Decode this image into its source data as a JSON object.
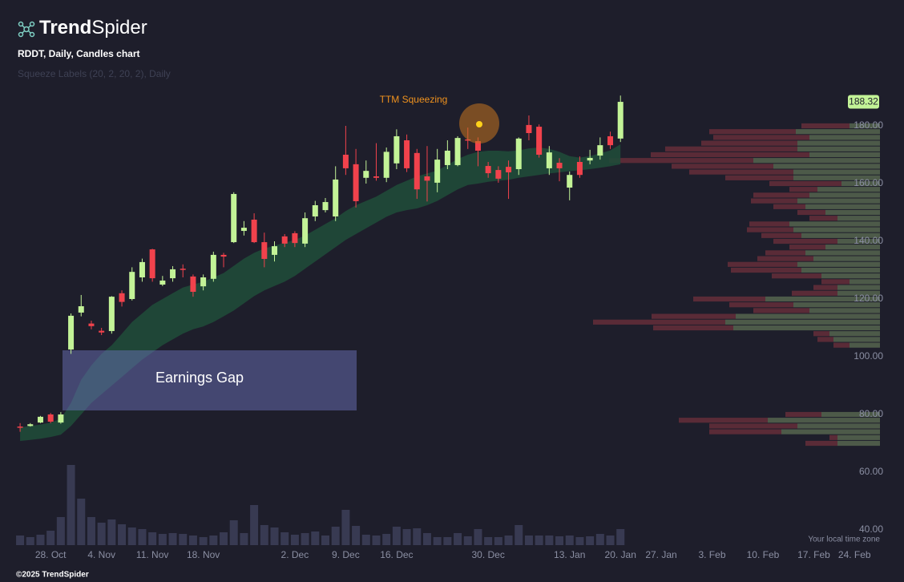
{
  "header": {
    "brand": [
      "Trend",
      "Spider"
    ]
  },
  "footer": "©2025 TrendSpider",
  "chart_data": {
    "type": "candlestick",
    "title": "RDDT, Daily, Candles chart",
    "subtitle": "Squeeze Labels (20, 2, 20, 2), Daily",
    "annotations": [
      "TTM Squeezing",
      "Earnings Gap"
    ],
    "timezone_note": "Your local time zone",
    "up_color": "#c3f397",
    "down_color": "#f1424c",
    "band_color": "#1f4a39",
    "volume_color": "#383a52",
    "sell_color": "#5a2b37",
    "buy_color": "#4d5a49",
    "grid": false,
    "xlim": [
      -3.4,
      81.5
    ],
    "ylim": [
      35,
      195
    ],
    "xticks": [
      {
        "value": 0,
        "label": "28. Oct"
      },
      {
        "value": 5,
        "label": "4. Nov"
      },
      {
        "value": 10,
        "label": "11. Nov"
      },
      {
        "value": 15,
        "label": "18. Nov"
      },
      {
        "value": 24,
        "label": "2. Dec"
      },
      {
        "value": 29,
        "label": "9. Dec"
      },
      {
        "value": 34,
        "label": "16. Dec"
      },
      {
        "value": 43,
        "label": "30. Dec"
      },
      {
        "value": 51,
        "label": "13. Jan"
      },
      {
        "value": 56,
        "label": "20. Jan"
      },
      {
        "value": 60,
        "label": "27. Jan"
      },
      {
        "value": 65,
        "label": "3. Feb"
      },
      {
        "value": 70,
        "label": "10. Feb"
      },
      {
        "value": 75,
        "label": "17. Feb"
      },
      {
        "value": 79,
        "label": "24. Feb"
      }
    ],
    "yticks": [
      {
        "value": 40,
        "label": "40.00"
      },
      {
        "value": 60,
        "label": "60.00"
      },
      {
        "value": 80,
        "label": "80.00"
      },
      {
        "value": 100,
        "label": "100.00"
      },
      {
        "value": 120,
        "label": "120.00"
      },
      {
        "value": 140,
        "label": "140.00"
      },
      {
        "value": 160,
        "label": "160.00"
      },
      {
        "value": 180,
        "label": "180.00"
      }
    ],
    "x": [
      -3,
      -2,
      -1,
      0,
      1,
      2,
      3,
      4,
      5,
      6,
      7,
      8,
      9,
      10,
      11,
      12,
      13,
      14,
      15,
      16,
      17,
      18,
      19,
      20,
      21,
      22,
      23,
      24,
      25,
      26,
      27,
      28,
      29,
      30,
      31,
      32,
      33,
      34,
      35,
      36,
      37,
      38,
      39,
      40,
      41,
      42,
      43,
      44,
      45,
      46,
      47,
      48,
      49,
      50,
      51,
      52,
      53,
      54,
      55,
      56
    ],
    "open": [
      75.8,
      76,
      77.2,
      80,
      77.2,
      102.5,
      115.3,
      111.5,
      109,
      108.9,
      122,
      120,
      127.5,
      137.2,
      125,
      127.2,
      130.5,
      127.8,
      124.4,
      127,
      135.3,
      139.7,
      143.6,
      147.5,
      139.7,
      135.3,
      141.7,
      142.8,
      139.2,
      148.6,
      150.8,
      148.6,
      170,
      166.7,
      162,
      162.5,
      162,
      167,
      175,
      170.6,
      162.5,
      160.3,
      166.4,
      166.4,
      175.3,
      174.7,
      166.1,
      164.7,
      165.8,
      165,
      180.3,
      179.7,
      165.3,
      167.2,
      158.6,
      167.5,
      168,
      169.7,
      176.4,
      175.6
    ],
    "high": [
      77,
      77,
      79.5,
      80.5,
      80.8,
      115,
      121.4,
      112.5,
      110,
      121,
      123,
      131,
      134,
      137.4,
      128,
      131.4,
      132,
      128.5,
      128.5,
      136.4,
      136,
      157,
      147,
      149.7,
      143,
      140,
      142.5,
      143.5,
      150,
      154,
      155,
      166,
      180,
      172,
      168,
      174,
      172.5,
      178.8,
      177,
      172,
      173,
      172,
      175,
      176.4,
      179.4,
      176,
      167.5,
      166,
      168,
      176,
      183.6,
      180.5,
      173,
      168.8,
      164.2,
      169.4,
      171.7,
      176,
      178,
      190.5
    ],
    "low": [
      74,
      75.8,
      77,
      77,
      76.8,
      101,
      114,
      109.5,
      107.5,
      108,
      117.4,
      119.5,
      126,
      126,
      124.5,
      126,
      127.5,
      120.8,
      123,
      126,
      131,
      139.4,
      142,
      139.4,
      131,
      133,
      138,
      138,
      138,
      147,
      150,
      147,
      163,
      151.7,
      160,
      161,
      160.5,
      165,
      164,
      154.7,
      153.8,
      157,
      165,
      166,
      172,
      166,
      162,
      160.3,
      154.7,
      163,
      175,
      169,
      163,
      160.8,
      154.2,
      162,
      166.7,
      168.3,
      172,
      174.4
    ],
    "close": [
      75.4,
      76.6,
      79.2,
      77.5,
      80,
      114.2,
      117.5,
      110.6,
      108.4,
      120.8,
      119,
      129.4,
      132.8,
      127.2,
      126.4,
      130.3,
      130.1,
      122.5,
      127.5,
      135.3,
      134.7,
      156.4,
      144.7,
      139.7,
      133.9,
      138.3,
      139.2,
      139.4,
      148,
      152.5,
      153.6,
      161.4,
      165.3,
      153.9,
      164.4,
      162,
      171,
      176.4,
      165.3,
      158,
      161,
      168.3,
      171.4,
      175.8,
      175,
      171.4,
      163.6,
      161.7,
      163.9,
      175.6,
      177.5,
      170,
      170.8,
      165.3,
      163,
      163,
      168.9,
      173.3,
      173.3,
      188.32
    ],
    "volume": [
      12,
      10,
      13,
      18,
      35,
      100,
      58,
      35,
      28,
      32,
      26,
      22,
      20,
      16,
      14,
      15,
      14,
      12,
      10,
      12,
      16,
      31,
      15,
      50,
      25,
      22,
      16,
      13,
      15,
      17,
      12,
      23,
      44,
      24,
      13,
      12,
      14,
      23,
      20,
      21,
      15,
      10,
      10,
      15,
      11,
      20,
      10,
      10,
      12,
      25,
      12,
      12,
      12,
      11,
      12,
      10,
      11,
      14,
      12,
      20
    ],
    "squeeze_upper": [
      75.5,
      76,
      76.5,
      77.2,
      78.5,
      84,
      92,
      97,
      101,
      104,
      108,
      112,
      115,
      118,
      120,
      122,
      124,
      125,
      126,
      127.5,
      129,
      131.5,
      134,
      136,
      137.5,
      138.5,
      139.5,
      140.5,
      142,
      144,
      146,
      148,
      150.5,
      152.5,
      154,
      155.5,
      157.5,
      159.5,
      161,
      162.5,
      163.5,
      164.5,
      166.5,
      168.5,
      170,
      171,
      171.4,
      171.4,
      171.2,
      171.5,
      172.2,
      172.5,
      172,
      171,
      169.5,
      169,
      169.5,
      170.5,
      171.5,
      173.6
    ],
    "squeeze_lower": [
      70.8,
      71.2,
      71.6,
      72.2,
      73,
      76,
      80,
      84,
      87,
      90,
      93,
      96,
      99,
      101.5,
      104,
      106,
      108,
      109.5,
      110.5,
      112,
      114,
      116,
      118.5,
      121,
      123,
      124.5,
      126,
      128,
      130.5,
      133,
      135.5,
      138,
      140.5,
      142.5,
      144.5,
      146.5,
      148.5,
      150,
      150.8,
      151.4,
      152.5,
      154,
      156,
      158,
      159.5,
      160,
      160.6,
      161,
      161.3,
      162,
      162.5,
      163,
      163.5,
      163.9,
      164.3,
      164.6,
      165,
      165.5,
      166,
      166.7
    ],
    "volume_profile": {
      "bins": [
        69,
        71,
        73,
        75,
        77,
        79,
        81,
        83,
        85,
        87,
        89,
        91,
        93,
        95,
        97,
        99,
        101,
        103,
        105,
        107,
        109,
        111,
        113,
        115,
        117,
        119,
        121,
        123,
        125,
        127,
        129,
        131,
        133,
        135,
        137,
        139,
        141,
        143,
        145,
        147,
        149,
        151,
        153,
        155,
        157,
        159,
        161,
        163,
        165,
        167,
        169,
        171,
        173,
        175,
        177,
        179,
        181
      ],
      "sell": [
        40,
        10,
        90,
        110,
        111,
        45,
        0,
        0,
        0,
        0,
        0,
        0,
        0,
        0,
        0,
        0,
        0,
        20,
        20,
        20,
        100,
        165,
        105,
        70,
        80,
        90,
        57,
        30,
        35,
        62,
        88,
        87,
        70,
        50,
        45,
        80,
        50,
        58,
        50,
        35,
        35,
        40,
        58,
        70,
        35,
        90,
        85,
        130,
        127,
        180,
        198,
        165,
        120,
        120,
        108,
        60
      ],
      "buy": [
        53,
        53,
        123,
        103,
        140,
        73,
        0,
        0,
        0,
        0,
        0,
        0,
        0,
        0,
        0,
        0,
        0,
        38,
        58,
        63,
        183,
        193,
        180,
        88,
        108,
        143,
        53,
        53,
        38,
        73,
        98,
        103,
        83,
        93,
        68,
        53,
        98,
        108,
        113,
        53,
        68,
        93,
        103,
        88,
        78,
        48,
        108,
        108,
        133,
        158,
        88,
        103,
        103,
        88,
        105,
        38
      ]
    }
  }
}
